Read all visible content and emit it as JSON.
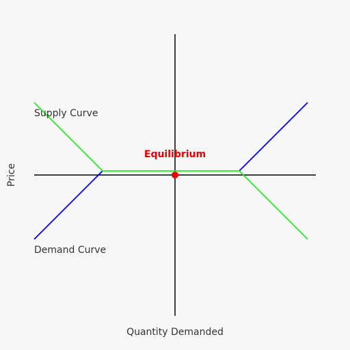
{
  "diagram": {
    "x_axis_label": "Quantity Demanded",
    "y_axis_label": "Price",
    "supply_label": "Supply Curve",
    "demand_label": "Demand Curve",
    "equilibrium_label": "Equilibrium"
  },
  "colors": {
    "background": "#f7f7f7",
    "axis": "#000000",
    "supply_curve": "#22ee22",
    "demand_curve": "#0000ee",
    "equilibrium": "#ee0000",
    "text": "#333333"
  }
}
